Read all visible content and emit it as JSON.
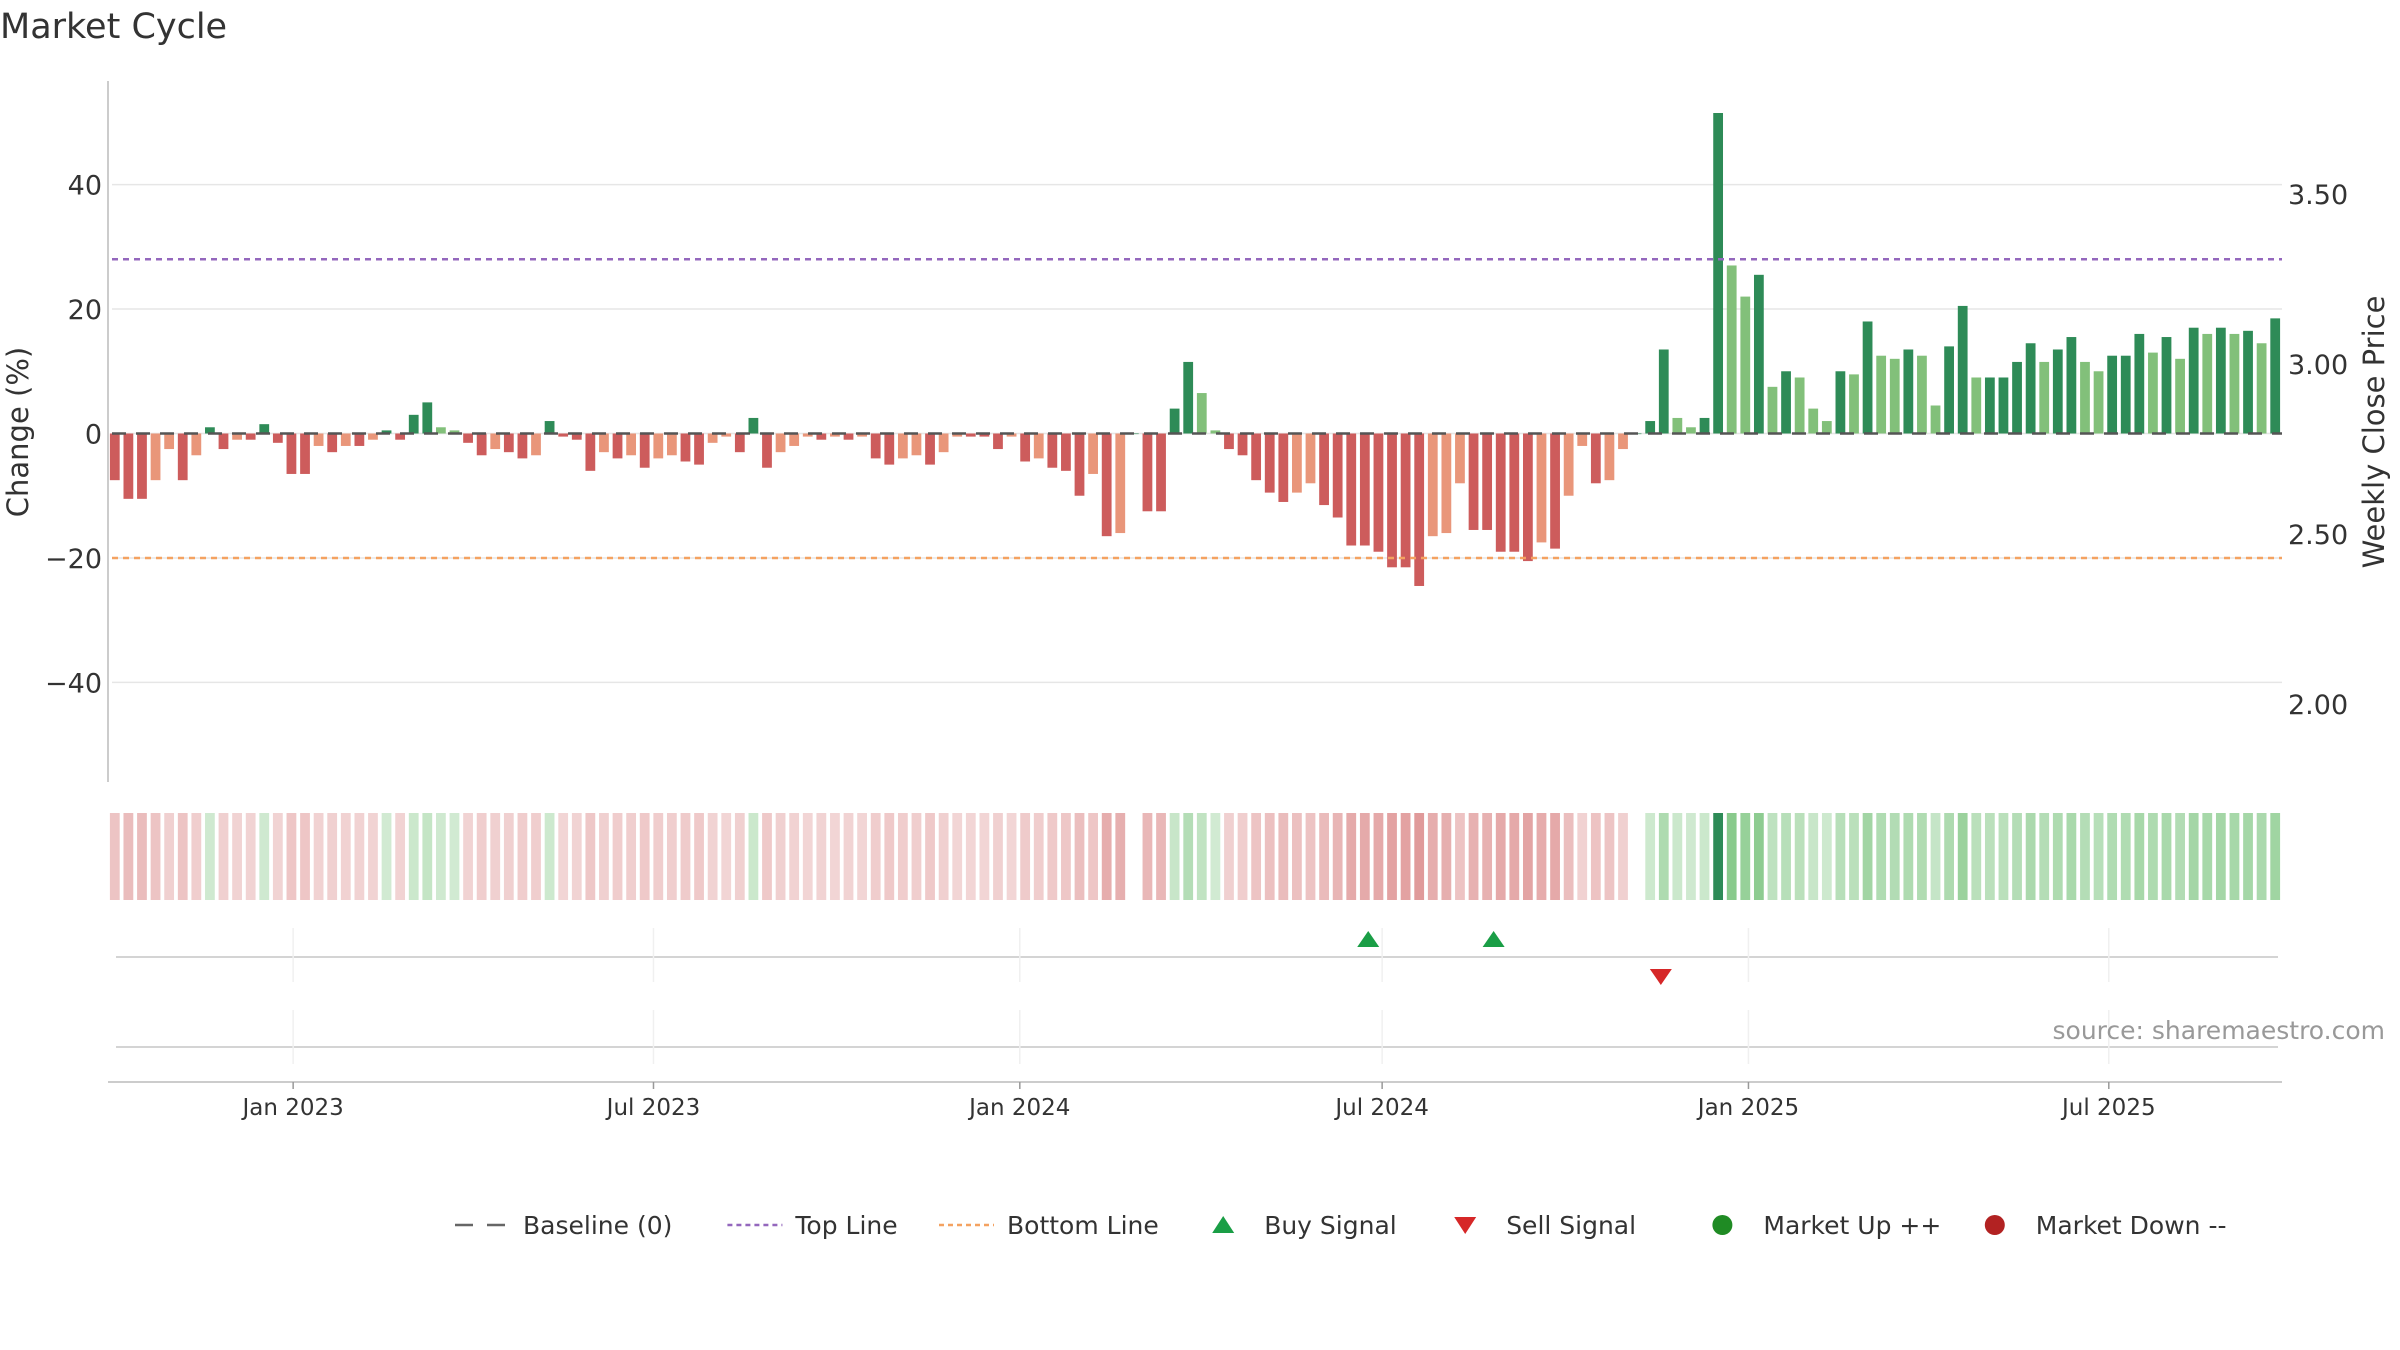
{
  "chart_data": {
    "type": "bar",
    "title": "Market Cycle",
    "ylabel": "Change (%)",
    "ylabel_right": "Weekly Close Price",
    "ylim": [
      -56,
      56
    ],
    "y_ticks": [
      40,
      20,
      0,
      -20,
      -40
    ],
    "y_tick_labels": [
      "40",
      "20",
      "0",
      "−20",
      "−40"
    ],
    "ylim_right": [
      1.77,
      3.82
    ],
    "y_right_ticks": [
      3.5,
      3.0,
      2.5,
      2.0
    ],
    "y_right_tick_labels": [
      "3.50",
      "3.00",
      "2.50",
      "2.00"
    ],
    "x_start": "2022-09-30",
    "x_end": "2025-09-26",
    "x_ticks": [
      {
        "date": "2023-01-01",
        "label": "Jan 2023"
      },
      {
        "date": "2023-07-01",
        "label": "Jul 2023"
      },
      {
        "date": "2024-01-01",
        "label": "Jan 2024"
      },
      {
        "date": "2024-07-01",
        "label": "Jul 2024"
      },
      {
        "date": "2025-01-01",
        "label": "Jan 2025"
      },
      {
        "date": "2025-07-01",
        "label": "Jul 2025"
      }
    ],
    "top_line": 28,
    "bottom_line": -20,
    "grid": true,
    "series": [
      {
        "name": "Change (%)",
        "values": [
          -7.5,
          -10.5,
          -10.5,
          -7.5,
          -2.5,
          -7.5,
          -3.5,
          1.0,
          -2.5,
          -1.0,
          -1.0,
          1.5,
          -1.5,
          -6.5,
          -6.5,
          -2.0,
          -3.0,
          -2.0,
          -2.0,
          -1.0,
          0.5,
          -1.0,
          3.0,
          5.0,
          1.0,
          0.5,
          -1.5,
          -3.5,
          -2.5,
          -3.0,
          -4.0,
          -3.5,
          2.0,
          -0.5,
          -1.0,
          -6.0,
          -3.0,
          -4.0,
          -3.5,
          -5.5,
          -4.0,
          -3.5,
          -4.5,
          -5.0,
          -1.5,
          -0.5,
          -3.0,
          2.5,
          -5.5,
          -3.0,
          -2.0,
          -0.5,
          -1.0,
          -0.5,
          -1.0,
          -0.5,
          -4.0,
          -5.0,
          -4.0,
          -3.5,
          -5.0,
          -3.0,
          -0.5,
          -0.5,
          -0.5,
          -2.5,
          -0.5,
          -4.5,
          -4.0,
          -5.5,
          -6.0,
          -10.0,
          -6.5,
          -16.5,
          -16.0,
          0.0,
          -12.5,
          -12.5,
          4.0,
          11.5,
          6.5,
          0.5,
          -2.5,
          -3.5,
          -7.5,
          -9.5,
          -11.0,
          -9.5,
          -8.0,
          -11.5,
          -13.5,
          -18.0,
          -18.0,
          -19.0,
          -21.5,
          -21.5,
          -24.5,
          -16.5,
          -16.0,
          -8.0,
          -15.5,
          -15.5,
          -19.0,
          -19.0,
          -20.5,
          -17.5,
          -18.5,
          -10.0,
          -2.0,
          -8.0,
          -7.5,
          -2.5,
          0.0,
          2.0,
          13.5,
          2.5,
          1.0,
          2.5,
          51.5,
          27.0,
          22.0,
          25.5,
          7.5,
          10.0,
          9.0,
          4.0,
          2.0,
          10.0,
          9.5,
          18.0,
          12.5,
          12.0,
          13.5,
          12.5,
          4.5,
          14.0,
          20.5,
          9.0,
          9.0,
          9.0,
          11.5,
          14.5,
          11.5,
          13.5,
          15.5,
          11.5,
          10.0,
          12.5,
          12.5,
          16.0,
          13.0,
          15.5,
          12.0,
          17.0,
          16.0,
          17.0,
          16.0,
          16.5,
          14.5,
          18.5
        ]
      }
    ],
    "legend_position": "bottom",
    "legend": [
      {
        "label": "Baseline (0)",
        "marker": "dash",
        "color": "#666666"
      },
      {
        "label": "Top Line",
        "marker": "dotted",
        "color": "#9467bd"
      },
      {
        "label": "Bottom Line",
        "marker": "dotted",
        "color": "#f4a261"
      },
      {
        "label": "Buy Signal",
        "marker": "triangle-up",
        "color": "#1a9e46"
      },
      {
        "label": "Sell Signal",
        "marker": "triangle-down",
        "color": "#d62728"
      },
      {
        "label": "Market Up ++",
        "marker": "circle",
        "color": "#1f8b24"
      },
      {
        "label": "Market Down --",
        "marker": "circle",
        "color": "#b22222"
      }
    ],
    "buy_signals": [
      "2024-06-24",
      "2024-08-26"
    ],
    "sell_signals": [
      "2024-11-18"
    ],
    "annotation": "source: sharemaestro.com",
    "colors": {
      "pos_strong": "#2e8b57",
      "pos_weak": "#82c07a",
      "neg_strong": "#cd5c5c",
      "neg_weak": "#e9967a",
      "top_line": "#9467bd",
      "bottom_line": "#f4a261",
      "grid": "#e6e6e6",
      "axis": "#cccccc",
      "text": "#333333"
    }
  }
}
